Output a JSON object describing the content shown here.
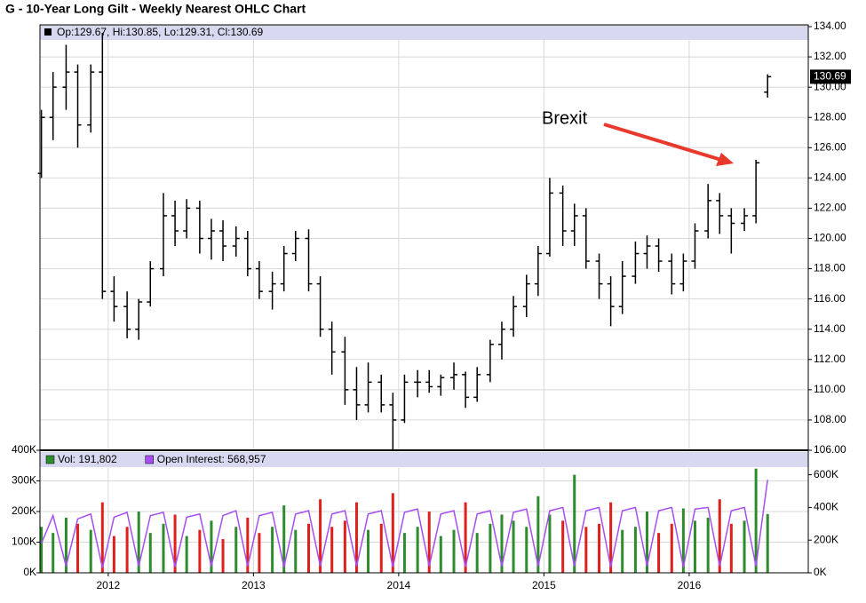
{
  "chart_data": [
    {
      "type": "ohlc",
      "title": "G - 10-Year Long Gilt - Weekly Nearest OHLC Chart",
      "info_text": "Op:129.67, Hi:130.85, Lo:129.31, Cl:130.69",
      "last_label": "130.69",
      "last_value": 130.69,
      "annotation": "Brexit",
      "annotation_color": "#e8392c",
      "color": "#000000",
      "x": [
        2011.54,
        2011.62,
        2011.71,
        2011.79,
        2011.88,
        2011.96,
        2012.04,
        2012.13,
        2012.21,
        2012.29,
        2012.38,
        2012.46,
        2012.54,
        2012.63,
        2012.71,
        2012.79,
        2012.88,
        2012.96,
        2013.04,
        2013.13,
        2013.21,
        2013.29,
        2013.38,
        2013.46,
        2013.54,
        2013.63,
        2013.71,
        2013.79,
        2013.88,
        2013.96,
        2014.04,
        2014.13,
        2014.21,
        2014.29,
        2014.38,
        2014.46,
        2014.54,
        2014.63,
        2014.71,
        2014.79,
        2014.88,
        2014.96,
        2015.04,
        2015.13,
        2015.21,
        2015.29,
        2015.38,
        2015.46,
        2015.54,
        2015.63,
        2015.71,
        2015.79,
        2015.88,
        2015.96,
        2016.04,
        2016.13,
        2016.21,
        2016.29,
        2016.38,
        2016.46,
        2016.54
      ],
      "open": [
        124.3,
        128,
        130,
        131,
        127.5,
        131,
        116.5,
        115.5,
        114,
        115.8,
        118,
        121.5,
        120.5,
        122,
        120,
        120.5,
        119.5,
        120,
        118,
        116.5,
        117,
        119,
        120,
        117,
        114,
        112.5,
        110,
        109,
        110.5,
        109,
        108,
        110.5,
        110.5,
        110.2,
        110.8,
        111,
        109.5,
        111,
        113,
        114,
        115.5,
        117,
        119,
        123,
        120.5,
        121.5,
        118.5,
        117,
        115.5,
        117.5,
        119,
        119.5,
        118.5,
        117,
        118.5,
        120.5,
        122.5,
        121.5,
        121,
        121.5,
        129.67
      ],
      "high": [
        128.5,
        131,
        132.8,
        131.5,
        131.5,
        133.6,
        117.5,
        116.5,
        116,
        118.5,
        123,
        122.5,
        122.6,
        122.5,
        121.3,
        121.2,
        120.8,
        120.5,
        118.5,
        117.8,
        119.5,
        120.5,
        120.6,
        117.5,
        114.5,
        113.5,
        111.5,
        111.8,
        111,
        109.8,
        111,
        111.3,
        111.3,
        111,
        111.8,
        111.2,
        111.5,
        113.3,
        114.5,
        116.2,
        117.6,
        119.5,
        124,
        123.5,
        122.3,
        122,
        119,
        117.5,
        118.5,
        119.8,
        120.2,
        120,
        119,
        119,
        121,
        123.6,
        123,
        122,
        122,
        125.2,
        130.85
      ],
      "low": [
        124,
        126.5,
        128.5,
        126,
        127,
        116,
        114.5,
        113.4,
        113.3,
        115.5,
        117.5,
        119.5,
        120,
        119,
        118.6,
        118.5,
        118.8,
        117.5,
        116,
        115.3,
        116.5,
        118.5,
        116.5,
        113.5,
        111,
        109,
        108,
        108.5,
        108.5,
        106,
        107.8,
        109.5,
        109.8,
        109.6,
        110,
        108.8,
        109.2,
        110.5,
        112,
        113.5,
        114.8,
        116.2,
        118.8,
        119.5,
        119.5,
        118,
        116,
        114.2,
        115,
        117,
        118,
        117.8,
        116.3,
        116.5,
        118,
        120,
        120.3,
        119,
        120.5,
        121,
        129.31
      ],
      "close": [
        128,
        130,
        131,
        127.5,
        131,
        116.5,
        115.5,
        114,
        115.8,
        118,
        121.5,
        120.5,
        122,
        120,
        120.5,
        119.5,
        120,
        118,
        116.5,
        117,
        119,
        120,
        117,
        114,
        112.5,
        110,
        109,
        110.5,
        109,
        108,
        110.5,
        110.5,
        110.2,
        110.8,
        111,
        109.5,
        111,
        113,
        114,
        115.5,
        117,
        119,
        123,
        120.5,
        121.5,
        118.5,
        117,
        115.5,
        117.5,
        119,
        119.5,
        118.5,
        117,
        118.5,
        120.5,
        122.5,
        121.5,
        121,
        121.5,
        125,
        130.69
      ],
      "xlim": [
        2011.53,
        2016.82
      ],
      "xticks": [
        2012,
        2013,
        2014,
        2015,
        2016
      ],
      "ylim": [
        106,
        134
      ],
      "yticks": [
        {
          "value": 106,
          "label": "106.00"
        },
        {
          "value": 108,
          "label": "108.00"
        },
        {
          "value": 110,
          "label": "110.00"
        },
        {
          "value": 112,
          "label": "112.00"
        },
        {
          "value": 114,
          "label": "114.00"
        },
        {
          "value": 116,
          "label": "116.00"
        },
        {
          "value": 118,
          "label": "118.00"
        },
        {
          "value": 120,
          "label": "120.00"
        },
        {
          "value": 122,
          "label": "122.00"
        },
        {
          "value": 124,
          "label": "124.00"
        },
        {
          "value": 126,
          "label": "126.00"
        },
        {
          "value": 128,
          "label": "128.00"
        },
        {
          "value": 130,
          "label": "130.00"
        },
        {
          "value": 132,
          "label": "132.00"
        },
        {
          "value": 134,
          "label": "134.00"
        }
      ],
      "grid": true
    },
    {
      "type": "bar",
      "up_color": "#2e8b2e",
      "down_color": "#e0201b",
      "x": [
        2011.54,
        2011.62,
        2011.71,
        2011.79,
        2011.88,
        2011.96,
        2012.04,
        2012.13,
        2012.21,
        2012.29,
        2012.38,
        2012.46,
        2012.54,
        2012.63,
        2012.71,
        2012.79,
        2012.88,
        2012.96,
        2013.04,
        2013.13,
        2013.21,
        2013.29,
        2013.38,
        2013.46,
        2013.54,
        2013.63,
        2013.71,
        2013.79,
        2013.88,
        2013.96,
        2014.04,
        2014.13,
        2014.21,
        2014.29,
        2014.38,
        2014.46,
        2014.54,
        2014.63,
        2014.71,
        2014.79,
        2014.88,
        2014.96,
        2015.04,
        2015.13,
        2015.21,
        2015.29,
        2015.38,
        2015.46,
        2015.54,
        2015.63,
        2015.71,
        2015.79,
        2015.88,
        2015.96,
        2016.04,
        2016.13,
        2016.21,
        2016.29,
        2016.38,
        2016.46,
        2016.54
      ],
      "series": [
        {
          "name": "Vol: 191,802",
          "color": "#2e8b2e",
          "values": [
            150000,
            130000,
            180000,
            160000,
            140000,
            230000,
            120000,
            150000,
            200000,
            130000,
            160000,
            190000,
            120000,
            140000,
            170000,
            110000,
            150000,
            180000,
            130000,
            150000,
            220000,
            140000,
            160000,
            240000,
            150000,
            170000,
            230000,
            140000,
            160000,
            260000,
            130000,
            150000,
            200000,
            120000,
            140000,
            230000,
            130000,
            160000,
            190000,
            170000,
            150000,
            250000,
            190000,
            170000,
            320000,
            150000,
            160000,
            230000,
            140000,
            150000,
            200000,
            130000,
            160000,
            210000,
            170000,
            180000,
            240000,
            160000,
            170000,
            340000,
            191802
          ]
        },
        {
          "name": "Open Interest: 568,957",
          "color": "#a64ef0",
          "axis": "y2",
          "values": [
            180000,
            350000,
            40000,
            330000,
            360000,
            30000,
            340000,
            370000,
            40000,
            350000,
            370000,
            35000,
            340000,
            360000,
            40000,
            350000,
            380000,
            40000,
            350000,
            370000,
            35000,
            360000,
            380000,
            40000,
            360000,
            380000,
            40000,
            360000,
            380000,
            35000,
            370000,
            390000,
            40000,
            360000,
            380000,
            35000,
            360000,
            380000,
            40000,
            370000,
            390000,
            40000,
            380000,
            400000,
            40000,
            380000,
            400000,
            35000,
            380000,
            400000,
            40000,
            380000,
            400000,
            35000,
            390000,
            400000,
            40000,
            380000,
            400000,
            40000,
            568957
          ]
        }
      ],
      "xlim": [
        2011.53,
        2016.82
      ],
      "xticks": [
        2012,
        2013,
        2014,
        2015,
        2016
      ],
      "ylim": [
        0,
        400000
      ],
      "yticks": [
        {
          "value": 0,
          "label": "0K"
        },
        {
          "value": 100000,
          "label": "100K"
        },
        {
          "value": 200000,
          "label": "200K"
        },
        {
          "value": 300000,
          "label": "300K"
        },
        {
          "value": 400000,
          "label": "400K"
        }
      ],
      "y2lim": [
        0,
        750000
      ],
      "y2ticks": [
        {
          "value": 0,
          "label": "0K"
        },
        {
          "value": 200000,
          "label": "200K"
        },
        {
          "value": 400000,
          "label": "400K"
        },
        {
          "value": 600000,
          "label": "600K"
        }
      ],
      "grid": true
    }
  ]
}
